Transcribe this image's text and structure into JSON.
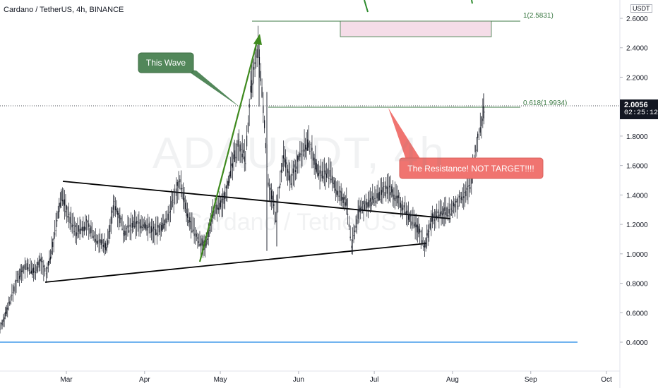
{
  "header": {
    "title": "Cardano / TetherUS, 4h, BINANCE",
    "unit": "USDT"
  },
  "watermark": {
    "symbol": "ADAUSDT, 4h",
    "name": "Cardano / TetherUS"
  },
  "current_price": {
    "value": "2.0056",
    "countdown": "02:25:12"
  },
  "annotations": {
    "wave_label": "This Wave",
    "resistance_label": "The Resistance! NOT TARGET!!!!",
    "fib_1": "1(2.5831)",
    "fib_0618": "0.618(1.9934)"
  },
  "colors": {
    "green_callout": "#52875a",
    "red_callout": "#f07470",
    "fib_line": "#3d7a45",
    "target_box_fill": "#f5dde8",
    "support_line": "#1e88e5",
    "candles": "#131722"
  },
  "chart_data": {
    "type": "line",
    "title": "Cardano / TetherUS, 4h, BINANCE",
    "xlabel": "",
    "ylabel": "",
    "x_ticks": [
      "Mar",
      "Apr",
      "May",
      "Jun",
      "Jul",
      "Aug",
      "Sep",
      "Oct"
    ],
    "y_ticks": [
      "2.6000",
      "2.4000",
      "2.2000",
      "2.0000",
      "1.8000",
      "1.6000",
      "1.4000",
      "1.2000",
      "1.0000",
      "0.8000",
      "0.6000",
      "0.4000"
    ],
    "ylim": [
      0.2,
      2.66
    ],
    "grid": false,
    "series": [
      {
        "values": [
          [
            "2021-02-01",
            0.4
          ],
          [
            "2021-02-04",
            0.55
          ],
          [
            "2021-02-07",
            0.7
          ],
          [
            "2021-02-10",
            0.85
          ],
          [
            "2021-02-13",
            0.92
          ],
          [
            "2021-02-16",
            0.88
          ],
          [
            "2021-02-19",
            0.95
          ],
          [
            "2021-02-21",
            0.85
          ],
          [
            "2021-02-24",
            1.1
          ],
          [
            "2021-02-27",
            1.4
          ],
          [
            "2021-03-02",
            1.25
          ],
          [
            "2021-03-05",
            1.15
          ],
          [
            "2021-03-09",
            1.2
          ],
          [
            "2021-03-13",
            1.1
          ],
          [
            "2021-03-17",
            1.05
          ],
          [
            "2021-03-20",
            1.35
          ],
          [
            "2021-03-24",
            1.15
          ],
          [
            "2021-03-28",
            1.2
          ],
          [
            "2021-04-01",
            1.2
          ],
          [
            "2021-04-05",
            1.15
          ],
          [
            "2021-04-09",
            1.2
          ],
          [
            "2021-04-13",
            1.4
          ],
          [
            "2021-04-15",
            1.5
          ],
          [
            "2021-04-18",
            1.25
          ],
          [
            "2021-04-22",
            1.1
          ],
          [
            "2021-04-25",
            1.05
          ],
          [
            "2021-04-28",
            1.28
          ],
          [
            "2021-05-02",
            1.35
          ],
          [
            "2021-05-05",
            1.55
          ],
          [
            "2021-05-08",
            1.75
          ],
          [
            "2021-05-11",
            1.65
          ],
          [
            "2021-05-13",
            2.1
          ],
          [
            "2021-05-16",
            2.4
          ],
          [
            "2021-05-18",
            2.0
          ],
          [
            "2021-05-20",
            1.5
          ],
          [
            "2021-05-23",
            1.25
          ],
          [
            "2021-05-26",
            1.65
          ],
          [
            "2021-05-29",
            1.5
          ],
          [
            "2021-06-02",
            1.7
          ],
          [
            "2021-06-05",
            1.75
          ],
          [
            "2021-06-09",
            1.55
          ],
          [
            "2021-06-13",
            1.55
          ],
          [
            "2021-06-17",
            1.4
          ],
          [
            "2021-06-20",
            1.35
          ],
          [
            "2021-06-22",
            1.05
          ],
          [
            "2021-06-25",
            1.3
          ],
          [
            "2021-06-29",
            1.35
          ],
          [
            "2021-07-03",
            1.4
          ],
          [
            "2021-07-07",
            1.45
          ],
          [
            "2021-07-11",
            1.35
          ],
          [
            "2021-07-15",
            1.25
          ],
          [
            "2021-07-19",
            1.15
          ],
          [
            "2021-07-21",
            1.05
          ],
          [
            "2021-07-24",
            1.25
          ],
          [
            "2021-07-28",
            1.28
          ],
          [
            "2021-08-01",
            1.3
          ],
          [
            "2021-08-05",
            1.4
          ],
          [
            "2021-08-08",
            1.45
          ],
          [
            "2021-08-10",
            1.7
          ],
          [
            "2021-08-12",
            1.85
          ],
          [
            "2021-08-14",
            2.0
          ]
        ]
      }
    ]
  }
}
